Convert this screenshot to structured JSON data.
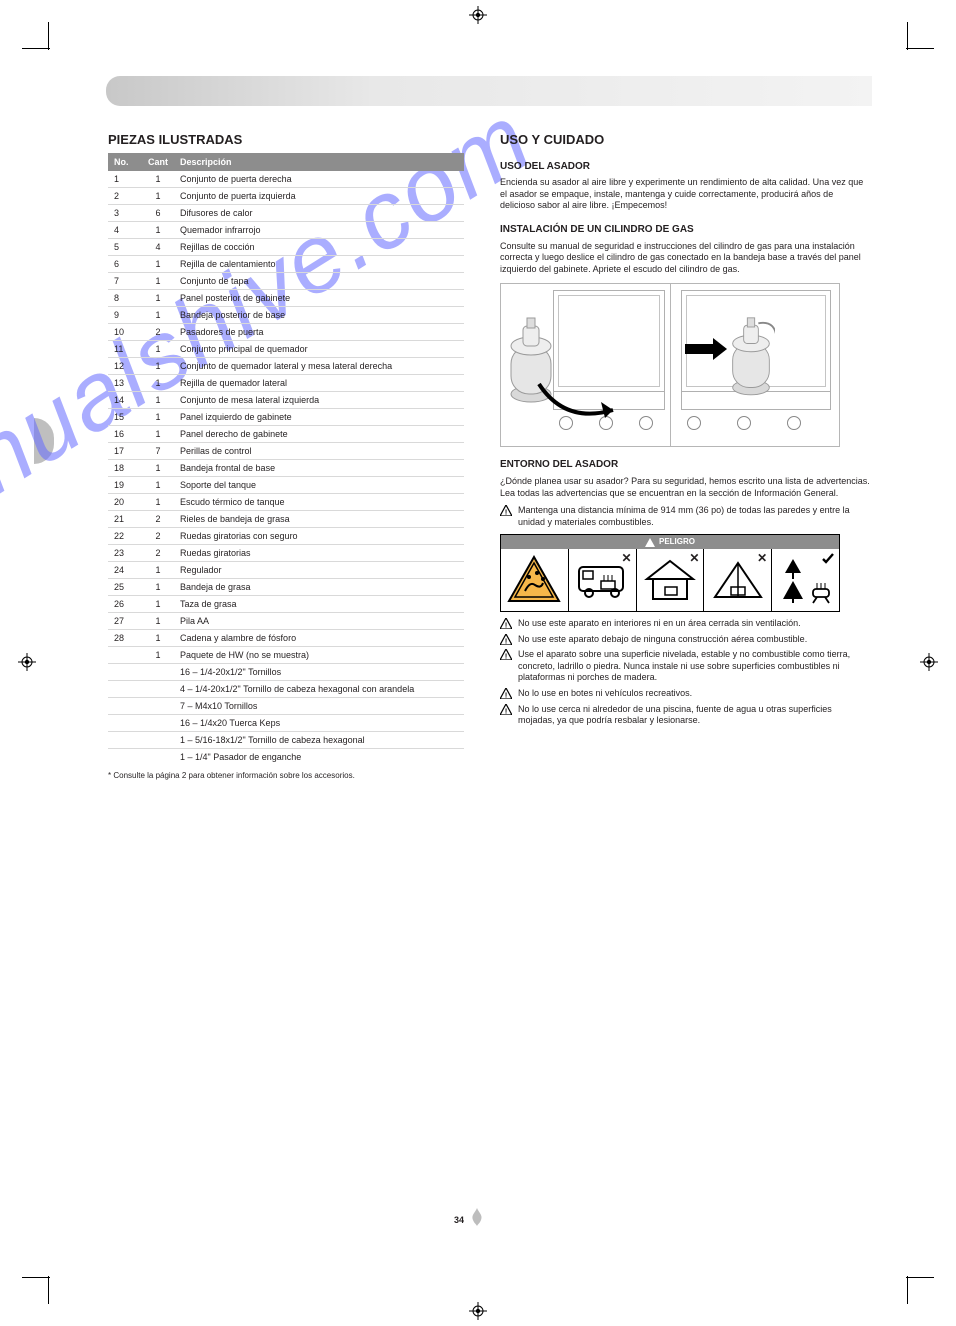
{
  "page_number": "34",
  "header_bar_color_start": "#c8c8c8",
  "header_bar_color_end": "#f3f3f3",
  "watermark_text": "manualshive.com",
  "watermark_color": "rgba(101,105,255,0.55)",
  "left": {
    "title": "PIEZAS ILUSTRADAS",
    "cols": {
      "num": "No.",
      "qty": "Cant",
      "desc": "Descripción"
    },
    "rows": [
      {
        "n": "1",
        "q": "1",
        "d": "Conjunto de puerta derecha"
      },
      {
        "n": "2",
        "q": "1",
        "d": "Conjunto de puerta izquierda"
      },
      {
        "n": "3",
        "q": "6",
        "d": "Difusores de calor"
      },
      {
        "n": "4",
        "q": "1",
        "d": "Quemador infrarrojo"
      },
      {
        "n": "5",
        "q": "4",
        "d": "Rejillas de cocción"
      },
      {
        "n": "6",
        "q": "1",
        "d": "Rejilla de calentamiento"
      },
      {
        "n": "7",
        "q": "1",
        "d": "Conjunto de tapa"
      },
      {
        "n": "8",
        "q": "1",
        "d": "Panel posterior de gabinete"
      },
      {
        "n": "9",
        "q": "1",
        "d": "Bandeja posterior de base"
      },
      {
        "n": "10",
        "q": "2",
        "d": "Pasadores de puerta"
      },
      {
        "n": "11",
        "q": "1",
        "d": "Conjunto principal de quemador"
      },
      {
        "n": "12",
        "q": "1",
        "d": "Conjunto de quemador lateral y mesa lateral derecha"
      },
      {
        "n": "13",
        "q": "1",
        "d": "Rejilla de quemador lateral"
      },
      {
        "n": "14",
        "q": "1",
        "d": "Conjunto de mesa lateral izquierda"
      },
      {
        "n": "15",
        "q": "1",
        "d": "Panel izquierdo de gabinete"
      },
      {
        "n": "16",
        "q": "1",
        "d": "Panel derecho de gabinete"
      },
      {
        "n": "17",
        "q": "7",
        "d": "Perillas de control"
      },
      {
        "n": "18",
        "q": "1",
        "d": "Bandeja frontal de base"
      },
      {
        "n": "19",
        "q": "1",
        "d": "Soporte del tanque"
      },
      {
        "n": "20",
        "q": "1",
        "d": "Escudo térmico de tanque"
      },
      {
        "n": "21",
        "q": "2",
        "d": "Rieles de bandeja de grasa"
      },
      {
        "n": "22",
        "q": "2",
        "d": "Ruedas giratorias con seguro"
      },
      {
        "n": "23",
        "q": "2",
        "d": "Ruedas giratorias"
      },
      {
        "n": "24",
        "q": "1",
        "d": "Regulador"
      },
      {
        "n": "25",
        "q": "1",
        "d": "Bandeja de grasa"
      },
      {
        "n": "26",
        "q": "1",
        "d": "Taza de grasa"
      },
      {
        "n": "27",
        "q": "1",
        "d": "Pila AA"
      },
      {
        "n": "28",
        "q": "1",
        "d": "Cadena y alambre de fósforo"
      },
      {
        "n": "",
        "q": "1",
        "d": "Paquete de HW (no se muestra)"
      },
      {
        "n": "",
        "q": "",
        "d": "16 – 1/4-20x1/2\" Tornillos"
      },
      {
        "n": "",
        "q": "",
        "d": "4 – 1/4-20x1/2\" Tornillo de cabeza hexagonal con arandela"
      },
      {
        "n": "",
        "q": "",
        "d": "7 – M4x10 Tornillos"
      },
      {
        "n": "",
        "q": "",
        "d": "16 – 1/4x20 Tuerca Keps"
      },
      {
        "n": "",
        "q": "",
        "d": "1 – 5/16-18x1/2\" Tornillo de cabeza hexagonal"
      },
      {
        "n": "",
        "q": "",
        "d": "1 – 1/4\" Pasador de enganche"
      }
    ],
    "note": "* Consulte la página 2 para obtener información sobre los accesorios."
  },
  "right": {
    "title": "USO Y CUIDADO",
    "intro_h": "USO DEL ASADOR",
    "intro_p": "Encienda su asador al aire libre y experimente un rendimiento de alta calidad. Una vez que el asador se empaque, instale, mantenga y cuide correctamente, producirá años de delicioso sabor al aire libre. ¡Empecemos!",
    "env_h": "ENTORNO DEL ASADOR",
    "cyl_h": "INSTALACIÓN DE UN CILINDRO DE GAS",
    "cyl_p": "Consulte su manual de seguridad e instrucciones del cilindro de gas para una instalación correcta y luego deslice el cilindro de gas conectado en la bandeja base a través del panel izquierdo del gabinete. Apriete el escudo del cilindro de gas.",
    "caption_p": "¿Dónde planea usar su asador? Para su seguridad, hemos escrito una lista de advertencias. Lea todas las advertencias que se encuentran en la sección de Información General.",
    "danger_label": "PELIGRO",
    "warns": [
      "Mantenga una distancia mínima de 914 mm (36 po) de todas las paredes y entre la unidad y materiales combustibles.",
      "No use este aparato en interiores ni en un área cerrada sin ventilación.",
      "No use este aparato debajo de ninguna construcción aérea combustible.",
      "Use el aparato sobre una superficie nivelada, estable y no combustible como tierra, concreto, ladrillo o piedra. Nunca instale ni use sobre superficies combustibles ni plataformas ni porches de madera.",
      "No lo use en botes ni vehículos recreativos.",
      "No lo use cerca ni alrededor de una piscina, fuente de agua u otras superficies mojadas, ya que podría resbalar y lesionarse."
    ]
  }
}
